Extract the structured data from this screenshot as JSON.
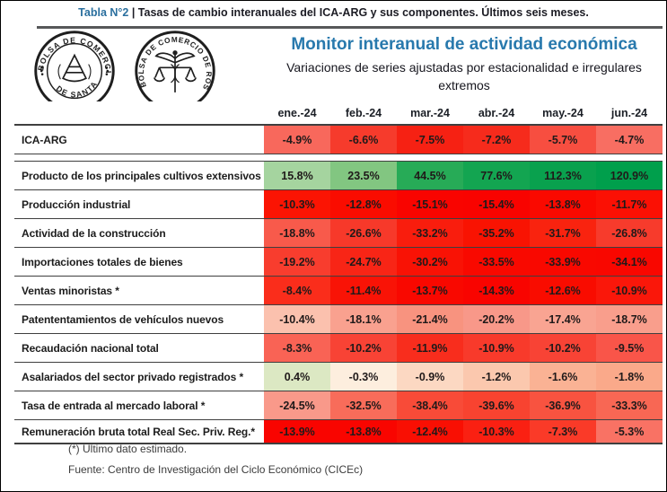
{
  "caption": {
    "prefix": "Tabla N°2 ",
    "text": "| Tasas de cambio interanuales del ICA-ARG y sus componentes. Últimos seis meses."
  },
  "header": {
    "title": "Monitor interanual de actividad económica",
    "subtitle": "Variaciones de series ajustadas por estacionalidad e irregulares extremos",
    "accent_color": "#2879ad"
  },
  "logos": {
    "santafe": {
      "top": "BOLSA DE COMERCIO",
      "bottom": "DE SANTA FE"
    },
    "rosario": {
      "arc": "BOLSA DE COMERCIO DE ROSARIO"
    }
  },
  "table": {
    "columns": [
      "ene.-24",
      "feb.-24",
      "mar.-24",
      "abr.-24",
      "may.-24",
      "jun.-24"
    ],
    "rows": [
      {
        "label": "ICA-ARG",
        "values": [
          "-4.9%",
          "-6.6%",
          "-7.5%",
          "-7.2%",
          "-5.7%",
          "-4.7%"
        ],
        "colors": [
          "#f8685c",
          "#f63b2c",
          "#f62113",
          "#f62b1c",
          "#f74e40",
          "#f86e62"
        ]
      },
      {
        "label": "Producto de los principales cultivos extensivos",
        "values": [
          "15.8%",
          "23.5%",
          "44.5%",
          "77.6%",
          "112.3%",
          "120.9%"
        ],
        "colors": [
          "#a5d49f",
          "#82c681",
          "#27ab57",
          "#13a551",
          "#09a14e",
          "#009f4c"
        ]
      },
      {
        "label": "Producción industrial",
        "values": [
          "-10.3%",
          "-12.8%",
          "-15.1%",
          "-15.4%",
          "-13.8%",
          "-11.7%"
        ],
        "colors": [
          "#fb1403",
          "#fa0c00",
          "#f90400",
          "#f90300",
          "#fa0900",
          "#fb1004"
        ]
      },
      {
        "label": "Actividad de la construcción",
        "values": [
          "-18.8%",
          "-26.6%",
          "-33.2%",
          "-35.2%",
          "-31.7%",
          "-26.8%"
        ],
        "colors": [
          "#f85a4b",
          "#f7392a",
          "#f91d0d",
          "#f91302",
          "#f9230f",
          "#f73b2c"
        ]
      },
      {
        "label": "Importaciones totales de bienes",
        "values": [
          "-19.2%",
          "-24.7%",
          "-30.2%",
          "-33.5%",
          "-33.9%",
          "-34.1%"
        ],
        "colors": [
          "#f83d2e",
          "#f82516",
          "#f91205",
          "#f90900",
          "#f90800",
          "#f90700"
        ]
      },
      {
        "label": "Ventas minoristas *",
        "values": [
          "-8.4%",
          "-11.4%",
          "-13.7%",
          "-14.3%",
          "-12.6%",
          "-10.9%"
        ],
        "colors": [
          "#fa2d1b",
          "#f91306",
          "#f90800",
          "#f90400",
          "#f90c00",
          "#fa170a"
        ]
      },
      {
        "label": "Patententamientos de vehículos nuevos",
        "values": [
          "-10.4%",
          "-18.1%",
          "-21.4%",
          "-20.2%",
          "-17.4%",
          "-18.7%"
        ],
        "colors": [
          "#fbc1ae",
          "#f9a18f",
          "#f8937f",
          "#f89889",
          "#f9a492",
          "#f99e8c"
        ]
      },
      {
        "label": "Recaudación nacional total",
        "values": [
          "-8.3%",
          "-10.2%",
          "-11.9%",
          "-10.9%",
          "-10.2%",
          "-9.5%"
        ],
        "colors": [
          "#f96355",
          "#f84335",
          "#f82d1d",
          "#f83a2b",
          "#f84335",
          "#f95549"
        ]
      },
      {
        "label": "Asalariados del sector privado registrados *",
        "values": [
          "0.4%",
          "-0.3%",
          "-0.9%",
          "-1.2%",
          "-1.6%",
          "-1.8%"
        ],
        "colors": [
          "#dce8c3",
          "#fdeede",
          "#fcd8c2",
          "#fbc8ae",
          "#fab294",
          "#faa98a"
        ]
      },
      {
        "label": "Tasa de entrada al mercado laboral *",
        "values": [
          "-24.5%",
          "-32.5%",
          "-38.4%",
          "-39.6%",
          "-36.9%",
          "-33.3%"
        ],
        "colors": [
          "#f9998a",
          "#f86c5a",
          "#f84b38",
          "#f84330",
          "#f85340",
          "#f86754"
        ]
      },
      {
        "label": "Remuneración bruta total Real Sec. Priv. Reg.*",
        "values": [
          "-13.9%",
          "-13.8%",
          "-12.4%",
          "-10.3%",
          "-7.3%",
          "-5.3%"
        ],
        "colors": [
          "#f90400",
          "#f90500",
          "#f90f03",
          "#fa2012",
          "#fa3a28",
          "#f97264"
        ]
      }
    ]
  },
  "footer": {
    "note": "(*) Último dato estimado.",
    "source": "Fuente: Centro de Investigación del Ciclo Económico (CICEc)"
  },
  "chart_data": {
    "type": "table",
    "title": "Monitor interanual de actividad económica",
    "subtitle": "Variaciones de series ajustadas por estacionalidad e irregulares extremos",
    "unit": "%",
    "categories": [
      "ene.-24",
      "feb.-24",
      "mar.-24",
      "abr.-24",
      "may.-24",
      "jun.-24"
    ],
    "series": [
      {
        "name": "ICA-ARG",
        "values": [
          -4.9,
          -6.6,
          -7.5,
          -7.2,
          -5.7,
          -4.7
        ]
      },
      {
        "name": "Producto de los principales cultivos extensivos",
        "values": [
          15.8,
          23.5,
          44.5,
          77.6,
          112.3,
          120.9
        ]
      },
      {
        "name": "Producción industrial",
        "values": [
          -10.3,
          -12.8,
          -15.1,
          -15.4,
          -13.8,
          -11.7
        ]
      },
      {
        "name": "Actividad de la construcción",
        "values": [
          -18.8,
          -26.6,
          -33.2,
          -35.2,
          -31.7,
          -26.8
        ]
      },
      {
        "name": "Importaciones totales de bienes",
        "values": [
          -19.2,
          -24.7,
          -30.2,
          -33.5,
          -33.9,
          -34.1
        ]
      },
      {
        "name": "Ventas minoristas *",
        "values": [
          -8.4,
          -11.4,
          -13.7,
          -14.3,
          -12.6,
          -10.9
        ]
      },
      {
        "name": "Patententamientos de vehículos nuevos",
        "values": [
          -10.4,
          -18.1,
          -21.4,
          -20.2,
          -17.4,
          -18.7
        ]
      },
      {
        "name": "Recaudación nacional total",
        "values": [
          -8.3,
          -10.2,
          -11.9,
          -10.9,
          -10.2,
          -9.5
        ]
      },
      {
        "name": "Asalariados del sector privado registrados *",
        "values": [
          0.4,
          -0.3,
          -0.9,
          -1.2,
          -1.6,
          -1.8
        ]
      },
      {
        "name": "Tasa de entrada al mercado laboral *",
        "values": [
          -24.5,
          -32.5,
          -38.4,
          -39.6,
          -36.9,
          -33.3
        ]
      },
      {
        "name": "Remuneración bruta total Real Sec. Priv. Reg.*",
        "values": [
          -13.9,
          -13.8,
          -12.4,
          -10.3,
          -7.3,
          -5.3
        ]
      }
    ],
    "legend_position": "none",
    "color_coding": "red = negative year-over-year change, green = positive; intensity scaled per row"
  }
}
